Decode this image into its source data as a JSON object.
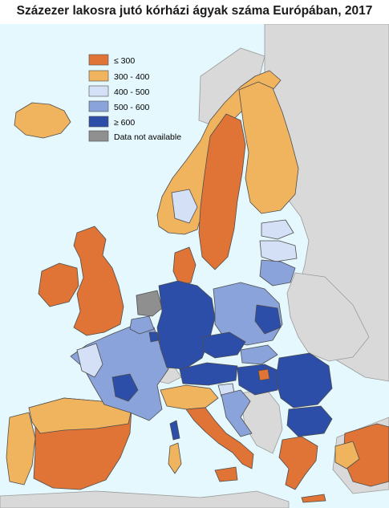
{
  "title": "Százezer lakosra jutó kórházi ágyak száma Európában, 2017",
  "colors": {
    "sea": "#e4f8fd",
    "non_eu": "#d9d9d9",
    "border": "#4d4d4d"
  },
  "legend": [
    {
      "label": "≤ 300",
      "color": "#e07436"
    },
    {
      "label": "300 - 400",
      "color": "#f0b35e"
    },
    {
      "label": "400 - 500",
      "color": "#d3e0f5"
    },
    {
      "label": "500 - 600",
      "color": "#8aa3db"
    },
    {
      "label": "≥ 600",
      "color": "#2c4da8"
    },
    {
      "label": "Data not available",
      "color": "#8f8f8f"
    }
  ]
}
